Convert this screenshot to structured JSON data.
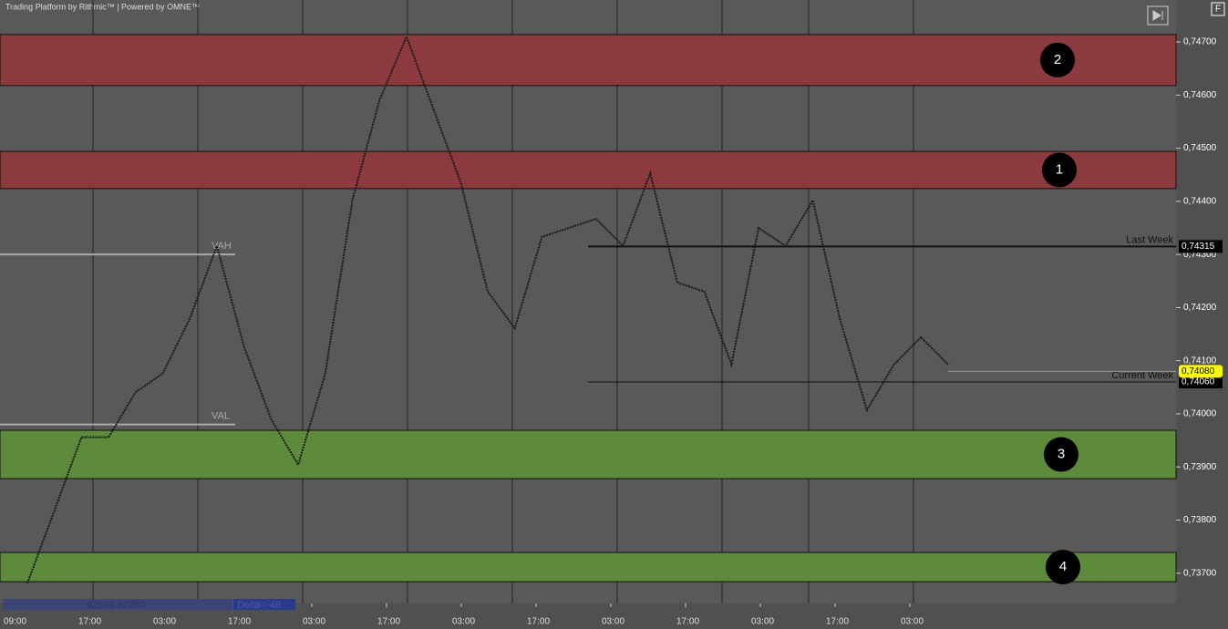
{
  "chart_data": {
    "type": "line",
    "header": "Trading Platform by Rithmic™ | Powered by OMNE™",
    "corner_button": "F",
    "ylim": [
      0.73643,
      0.74779
    ],
    "yticks": [
      {
        "value": 0.737,
        "label": "0,73700"
      },
      {
        "value": 0.738,
        "label": "0,73800"
      },
      {
        "value": 0.739,
        "label": "0,73900"
      },
      {
        "value": 0.74,
        "label": "0,74000"
      },
      {
        "value": 0.741,
        "label": "0,74100"
      },
      {
        "value": 0.742,
        "label": "0,74200"
      },
      {
        "value": 0.743,
        "label": "0,74300"
      },
      {
        "value": 0.744,
        "label": "0,74400"
      },
      {
        "value": 0.745,
        "label": "0,74500"
      },
      {
        "value": 0.746,
        "label": "0,74600"
      },
      {
        "value": 0.747,
        "label": "0,74700"
      }
    ],
    "x_labels": [
      "09:00",
      "17:00",
      "03:00",
      "17:00",
      "03:00",
      "17:00",
      "03:00",
      "17:00",
      "03:00",
      "17:00",
      "03:00",
      "17:00",
      "03:00"
    ],
    "zones": [
      {
        "label": "2",
        "from": 0.74618,
        "to": 0.74714,
        "color": "#8b3a3e"
      },
      {
        "label": "1",
        "from": 0.74424,
        "to": 0.74494,
        "color": "#8b3a3e"
      },
      {
        "label": "3",
        "from": 0.73878,
        "to": 0.73969,
        "color": "#5e8a3c"
      },
      {
        "label": "4",
        "from": 0.73684,
        "to": 0.73739,
        "color": "#5e8a3c"
      }
    ],
    "levels": [
      {
        "name": "Last Week",
        "value": 0.74315,
        "value_label": "0,74315"
      },
      {
        "name": "Current Week",
        "value": 0.7406,
        "value_label": "0,74060"
      }
    ],
    "last_price": {
      "value": 0.7408,
      "value_label": "0,74080"
    },
    "value_area": [
      {
        "name": "VAH",
        "value": 0.743
      },
      {
        "name": "VAL",
        "value": 0.7398
      }
    ],
    "footer_volume": "62699 62650",
    "footer_delta": "Delta=-49",
    "series": [
      {
        "color": "#1a1a1a",
        "values": [
          0.73681,
          0.73818,
          0.73956,
          0.73956,
          0.74041,
          0.74076,
          0.74179,
          0.74316,
          0.74127,
          0.7399,
          0.73904,
          0.74076,
          0.74402,
          0.7459,
          0.7471,
          0.74573,
          0.74436,
          0.7423,
          0.74161,
          0.74333,
          0.7435,
          0.74367,
          0.74316,
          0.74453,
          0.74247,
          0.7423,
          0.74093,
          0.7435,
          0.74316,
          0.74402,
          0.74179,
          0.74007,
          0.74093,
          0.74144,
          0.74093
        ]
      }
    ]
  }
}
